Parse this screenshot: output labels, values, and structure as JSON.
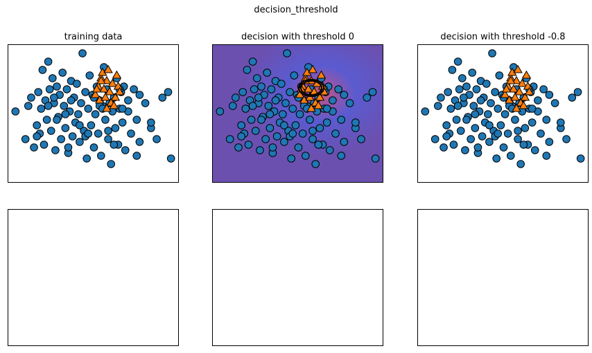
{
  "figure": {
    "suptitle": "decision_threshold",
    "colors": {
      "class0": "#1f77b4",
      "class1": "#ff7f0e",
      "decision_bg": "#6b50b0",
      "decision_mid": "#5a4fc0",
      "edge": "#000000"
    }
  },
  "chart_data": [
    {
      "type": "scatter",
      "title": "training data",
      "xlabel": "",
      "ylabel": "",
      "grid": false,
      "series": [
        {
          "class": 0,
          "marker": "circle",
          "color": "#1f77b4",
          "x": [
            -2.75,
            -2.4,
            -2.3,
            -2.2,
            -2.1,
            -2.0,
            -1.95,
            -1.9,
            -1.85,
            -1.8,
            -1.75,
            -1.7,
            -1.65,
            -1.6,
            -1.55,
            -1.5,
            -1.45,
            -1.4,
            -1.35,
            -1.3,
            -1.25,
            -1.2,
            -1.15,
            -1.1,
            -1.05,
            -1.0,
            -0.95,
            -0.9,
            -0.85,
            -0.8,
            -0.75,
            -0.7,
            -0.65,
            -0.6,
            -0.55,
            -0.5,
            -0.45,
            -0.4,
            -0.35,
            -0.3,
            -0.25,
            -0.2,
            -0.15,
            -0.1,
            -0.05,
            0.0,
            0.05,
            0.1,
            0.15,
            0.2,
            0.25,
            0.3,
            0.35,
            0.4,
            0.45,
            0.5,
            0.55,
            0.6,
            0.65,
            0.7,
            0.75,
            0.8,
            0.85,
            0.9,
            0.95,
            1.0,
            1.05,
            1.1,
            1.2,
            1.3,
            1.4,
            1.5,
            1.6,
            1.8,
            2.0,
            2.2,
            2.4,
            2.6,
            2.7,
            -1.3,
            -0.8,
            -0.3,
            0.2,
            0.7,
            1.2,
            -1.0,
            -0.5,
            0.0,
            0.5,
            1.0,
            -1.6,
            1.6,
            -2.0,
            2.0,
            -0.2,
            0.3,
            0.9,
            -0.9,
            1.5,
            -1.4
          ],
          "y": [
            0.1,
            -0.9,
            0.3,
            0.6,
            -1.2,
            -0.4,
            0.8,
            -0.7,
            0.2,
            1.6,
            -1.1,
            0.5,
            -0.2,
            1.9,
            0.9,
            -0.6,
            1.3,
            0.4,
            -1.3,
            1.0,
            -0.1,
            0.7,
            -0.9,
            1.5,
            0.3,
            -0.5,
            0.9,
            -1.4,
            0.1,
            1.2,
            -0.8,
            0.6,
            -0.3,
            1.1,
            0.0,
            -1.0,
            0.4,
            2.2,
            -0.6,
            0.8,
            -1.6,
            0.2,
            1.4,
            -0.4,
            0.7,
            -1.2,
            0.0,
            1.0,
            -0.7,
            0.5,
            -1.5,
            0.3,
            1.7,
            -0.2,
            0.9,
            -0.9,
            0.4,
            -1.8,
            0.1,
            0.6,
            -0.5,
            1.3,
            -1.1,
            0.2,
            0.8,
            -0.3,
            1.0,
            -1.3,
            0.5,
            -0.7,
            0.9,
            -0.2,
            -1.0,
            0.4,
            -0.5,
            -0.9,
            0.6,
            0.8,
            -1.6,
            -0.2,
            0.5,
            -0.8,
            0.3,
            -1.1,
            0.1,
            0.0,
            -0.4,
            0.6,
            -0.6,
            0.2,
            0.3,
            0.7,
            -0.8,
            -0.3,
            -0.7,
            0.2,
            0.9,
            -1.2,
            -1.5,
            0.6
          ]
        },
        {
          "class": 1,
          "marker": "triangle",
          "color": "#ff7f0e",
          "x": [
            0.05,
            0.15,
            0.25,
            0.35,
            0.45,
            0.55,
            0.65,
            0.75,
            0.85,
            0.2,
            0.4,
            0.6,
            0.8,
            0.3,
            0.5,
            0.7,
            0.1,
            0.9,
            0.45,
            0.25
          ],
          "y": [
            0.7,
            1.0,
            1.3,
            0.9,
            1.2,
            0.8,
            1.1,
            0.6,
            1.0,
            0.5,
            0.6,
            0.4,
            1.4,
            1.5,
            1.6,
            0.3,
            0.9,
            0.8,
            0.2,
            1.2
          ]
        }
      ],
      "xlim": [
        -3,
        3
      ],
      "ylim": [
        -2.5,
        2.5
      ]
    },
    {
      "type": "scatter",
      "title": "decision with threshold 0",
      "xlabel": "",
      "ylabel": "",
      "grid": false,
      "background": "decision_function",
      "contour_levels": [
        0
      ],
      "xlim": [
        -3,
        3
      ],
      "ylim": [
        -2.5,
        2.5
      ]
    },
    {
      "type": "scatter",
      "title": "decision with threshold -0.8",
      "xlabel": "",
      "ylabel": "",
      "grid": false,
      "xlim": [
        -3,
        3
      ],
      "ylim": [
        -2.5,
        2.5
      ]
    },
    {
      "type": "scatter",
      "title": "",
      "xlabel": "",
      "ylabel": "",
      "empty": true
    },
    {
      "type": "scatter",
      "title": "",
      "xlabel": "",
      "ylabel": "",
      "empty": true
    },
    {
      "type": "scatter",
      "title": "",
      "xlabel": "",
      "ylabel": "",
      "empty": true
    }
  ]
}
